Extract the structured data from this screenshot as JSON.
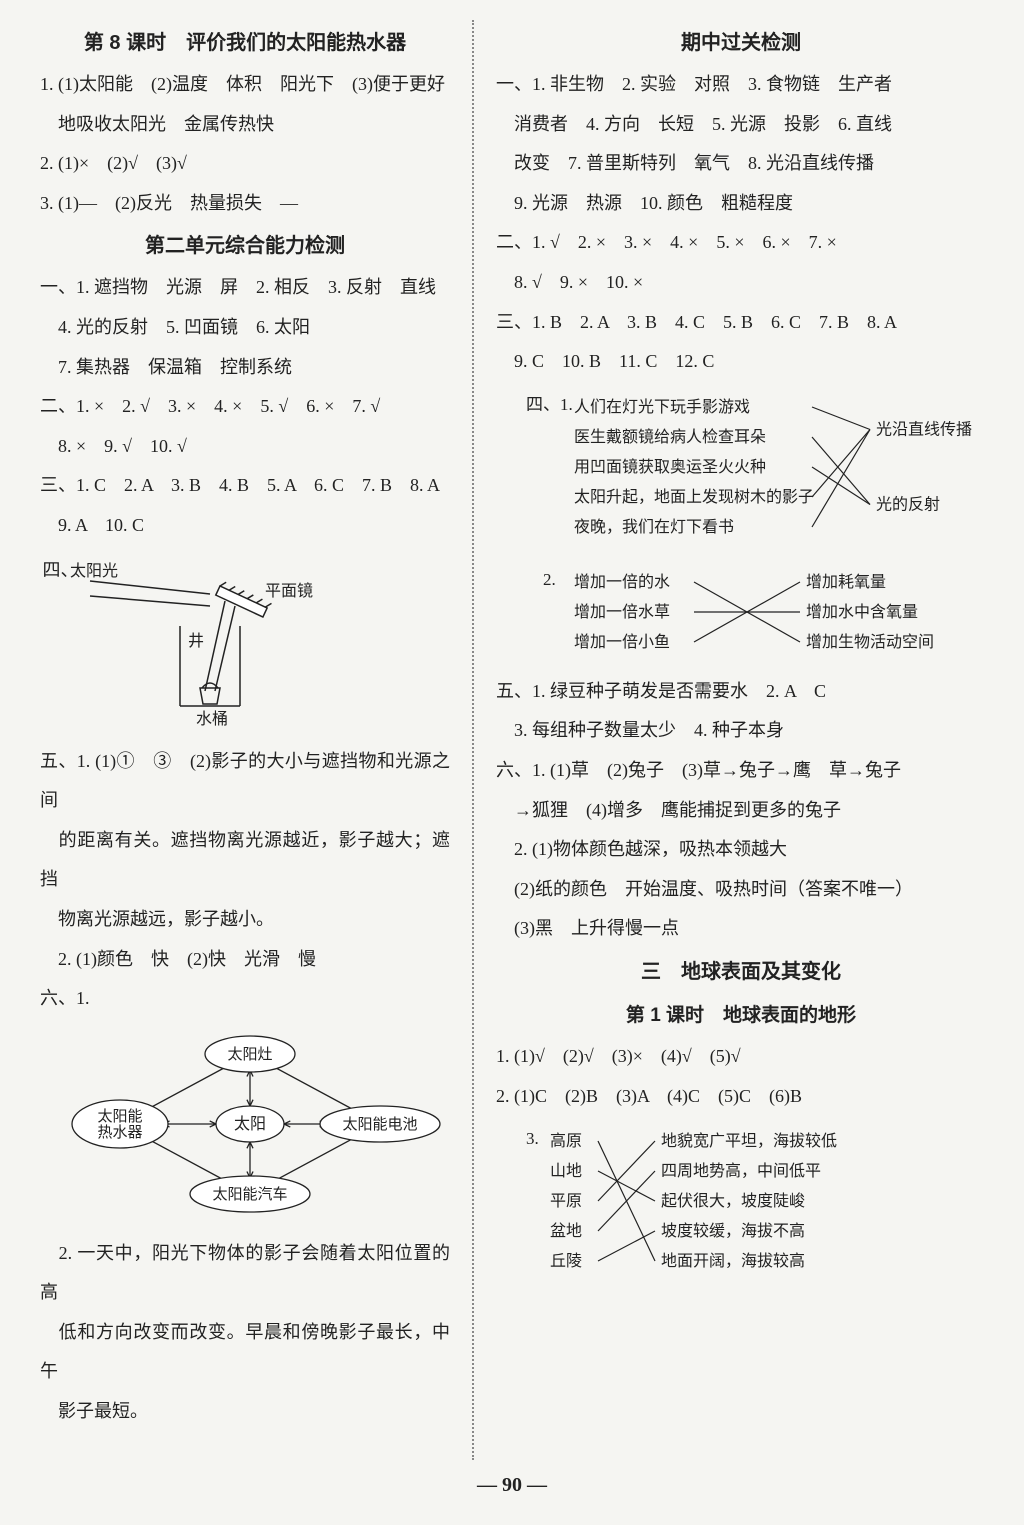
{
  "page_number": "90",
  "background_color": "#f5f5f2",
  "text_color": "#222222",
  "heading_font": "SimHei",
  "body_font": "SimSun",
  "body_fontsize": 18,
  "heading_fontsize": 20,
  "line_height": 2.2,
  "left": {
    "h1": "第 8 课时　评价我们的太阳能热水器",
    "s8": [
      "1. (1)太阳能　(2)温度　体积　阳光下　(3)便于更好",
      "　地吸收太阳光　金属传热快",
      "2. (1)×　(2)√　(3)√",
      "3. (1)—　(2)反光　热量损失　—"
    ],
    "h2": "第二单元综合能力检测",
    "u2": [
      "一、1. 遮挡物　光源　屏　2. 相反　3. 反射　直线",
      "　4. 光的反射　5. 凹面镜　6. 太阳",
      "　7. 集热器　保温箱　控制系统",
      "二、1. ×　2. √　3. ×　4. ×　5. √　6. ×　7. √",
      "　8. ×　9. √　10. √",
      "三、1. C　2. A　3. B　4. B　5. A　6. C　7. B　8. A",
      "　9. A　10. C"
    ],
    "fig_mirror": {
      "prefix": "四、",
      "labels": {
        "sun": "太阳光",
        "mirror": "平面镜",
        "well": "井",
        "bucket": "水桶"
      },
      "stroke": "#222222"
    },
    "u2b": [
      "五、1. (1)①　③　(2)影子的大小与遮挡物和光源之间",
      "　的距离有关。遮挡物离光源越近，影子越大；遮挡",
      "　物离光源越远，影子越小。",
      "　2. (1)颜色　快　(2)快　光滑　慢",
      "六、1."
    ],
    "fig_sun": {
      "center": "太阳",
      "nodes": [
        "太阳灶",
        "太阳能电池",
        "太阳能汽车",
        "太阳能\n热水器"
      ],
      "stroke": "#222222",
      "fill": "#ffffff"
    },
    "u2c": [
      "　2. 一天中，阳光下物体的影子会随着太阳位置的高",
      "　低和方向改变而改变。早晨和傍晚影子最长，中午",
      "　影子最短。"
    ]
  },
  "right": {
    "h1": "期中过关检测",
    "mid_a": [
      "一、1. 非生物　2. 实验　对照　3. 食物链　生产者",
      "　消费者　4. 方向　长短　5. 光源　投影　6. 直线",
      "　改变　7. 普里斯特列　氧气　8. 光沿直线传播",
      "　9. 光源　热源　10. 颜色　粗糙程度",
      "二、1. √　2. ×　3. ×　4. ×　5. ×　6. ×　7. ×",
      "　8. √　9. ×　10. ×",
      "三、1. B　2. A　3. B　4. C　5. B　6. C　7. B　8. A",
      "　9. C　10. B　11. C　12. C"
    ],
    "match1": {
      "prefix": "四、1.",
      "left_items": [
        "人们在灯光下玩手影游戏",
        "医生戴额镜给病人检查耳朵",
        "用凹面镜获取奥运圣火火种",
        "太阳升起，地面上发现树木的影子",
        "夜晚，我们在灯下看书"
      ],
      "right_items": [
        "光沿直线传播",
        "光的反射"
      ],
      "edges": [
        [
          0,
          0
        ],
        [
          1,
          1
        ],
        [
          2,
          1
        ],
        [
          3,
          0
        ],
        [
          4,
          0
        ]
      ],
      "stroke": "#222222"
    },
    "match2": {
      "prefix": "　2.",
      "left_items": [
        "增加一倍的水",
        "增加一倍水草",
        "增加一倍小鱼"
      ],
      "right_items": [
        "增加耗氧量",
        "增加水中含氧量",
        "增加生物活动空间"
      ],
      "edges": [
        [
          0,
          2
        ],
        [
          1,
          1
        ],
        [
          2,
          0
        ]
      ],
      "stroke": "#222222"
    },
    "mid_b": [
      "五、1. 绿豆种子萌发是否需要水　2. A　C",
      "　3. 每组种子数量太少　4. 种子本身",
      "六、1. (1)草　(2)兔子　(3)草→兔子→鹰　草→兔子",
      "　→狐狸　(4)增多　鹰能捕捉到更多的兔子",
      "　2. (1)物体颜色越深，吸热本领越大",
      "　(2)纸的颜色　开始温度、吸热时间（答案不唯一）",
      "　(3)黑　上升得慢一点"
    ],
    "h2": "三　地球表面及其变化",
    "h3": "第 1 课时　地球表面的地形",
    "earth_a": [
      "1. (1)√　(2)√　(3)×　(4)√　(5)√",
      "2. (1)C　(2)B　(3)A　(4)C　(5)C　(6)B"
    ],
    "match3": {
      "prefix": "3.",
      "left_items": [
        "高原",
        "山地",
        "平原",
        "盆地",
        "丘陵"
      ],
      "right_items": [
        "地貌宽广平坦，海拔较低",
        "四周地势高，中间低平",
        "起伏很大，坡度陡峻",
        "坡度较缓，海拔不高",
        "地面开阔，海拔较高"
      ],
      "edges": [
        [
          0,
          4
        ],
        [
          1,
          2
        ],
        [
          2,
          0
        ],
        [
          3,
          1
        ],
        [
          4,
          3
        ]
      ],
      "stroke": "#222222"
    }
  }
}
